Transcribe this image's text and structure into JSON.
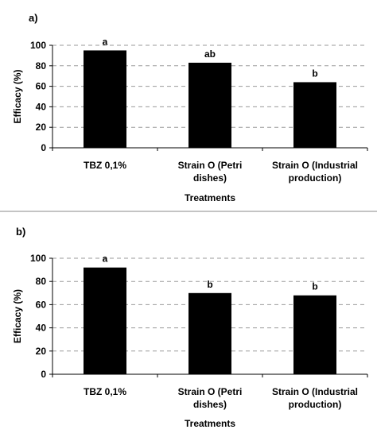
{
  "chart_data": [
    {
      "type": "bar",
      "panel_label": "a)",
      "categories": [
        [
          "TBZ 0,1%"
        ],
        [
          "Strain O (Petri",
          "dishes)"
        ],
        [
          "Strain O (Industrial",
          "production)"
        ]
      ],
      "values": [
        95,
        83,
        64
      ],
      "data_labels": [
        "a",
        "ab",
        "b"
      ],
      "xlabel": "Treatments",
      "ylabel": "Efficacy (%)",
      "ylim": [
        0,
        100
      ],
      "yticks": [
        0,
        20,
        40,
        60,
        80,
        100
      ],
      "grid": "horizontal dashed",
      "bar_color": "#000000"
    },
    {
      "type": "bar",
      "panel_label": "b)",
      "categories": [
        [
          "TBZ 0,1%"
        ],
        [
          "Strain O (Petri",
          "dishes)"
        ],
        [
          "Strain O (Industrial",
          "production)"
        ]
      ],
      "values": [
        92,
        70,
        68
      ],
      "data_labels": [
        "a",
        "b",
        "b"
      ],
      "xlabel": "Treatments",
      "ylabel": "Efficacy (%)",
      "ylim": [
        0,
        100
      ],
      "yticks": [
        0,
        20,
        40,
        60,
        80,
        100
      ],
      "grid": "horizontal dashed",
      "bar_color": "#000000"
    }
  ]
}
